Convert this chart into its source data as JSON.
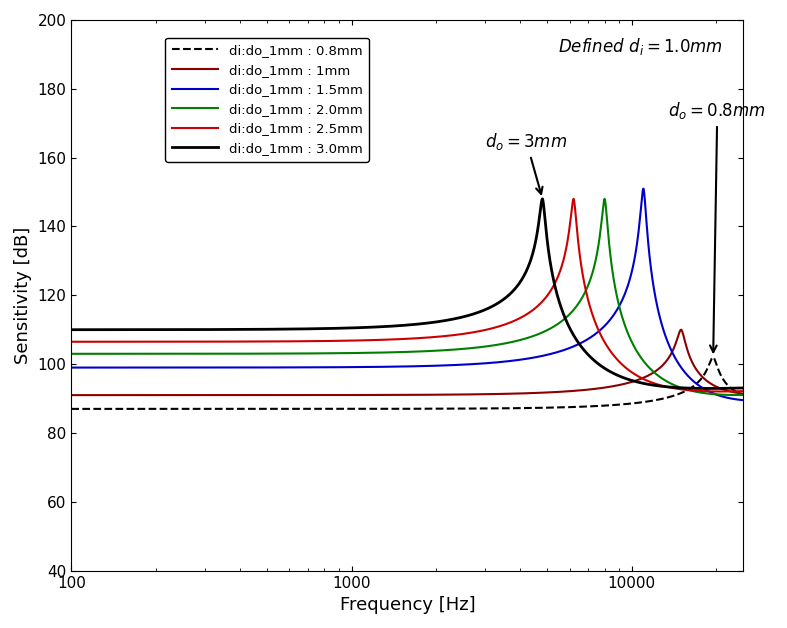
{
  "title": "",
  "xlabel": "Frequency [Hz]",
  "ylabel": "Sensitivity [dB]",
  "xlim": [
    100,
    25000
  ],
  "ylim": [
    40,
    200
  ],
  "yticks": [
    40,
    60,
    80,
    100,
    120,
    140,
    160,
    180,
    200
  ],
  "series": [
    {
      "label": "di:do_1mm : 0.8mm",
      "color": "#000000",
      "linestyle": "dashed",
      "linewidth": 1.5,
      "flat_level": 87.0,
      "resonance_freq": 19500,
      "resonance_peak": 102,
      "Q": 18,
      "post_level": 95
    },
    {
      "label": "di:do_1mm : 1mm",
      "color": "#8B0000",
      "linestyle": "solid",
      "linewidth": 1.5,
      "flat_level": 91.0,
      "resonance_freq": 15000,
      "resonance_peak": 110,
      "Q": 18,
      "post_level": 95
    },
    {
      "label": "di:do_1mm : 1.5mm",
      "color": "#0000CC",
      "linestyle": "solid",
      "linewidth": 1.5,
      "flat_level": 99.0,
      "resonance_freq": 11000,
      "resonance_peak": 151,
      "Q": 25,
      "post_level": 95
    },
    {
      "label": "di:do_1mm : 2.0mm",
      "color": "#008000",
      "linestyle": "solid",
      "linewidth": 1.5,
      "flat_level": 103.0,
      "resonance_freq": 8000,
      "resonance_peak": 148,
      "Q": 25,
      "post_level": 95
    },
    {
      "label": "di:do_1mm : 2.5mm",
      "color": "#CC0000",
      "linestyle": "solid",
      "linewidth": 1.5,
      "flat_level": 106.5,
      "resonance_freq": 6200,
      "resonance_peak": 148,
      "Q": 25,
      "post_level": 95
    },
    {
      "label": "di:do_1mm : 3.0mm",
      "color": "#000000",
      "linestyle": "solid",
      "linewidth": 2.0,
      "flat_level": 110.0,
      "resonance_freq": 4800,
      "resonance_peak": 148,
      "Q": 25,
      "post_level": 95
    }
  ],
  "background_color": "white"
}
